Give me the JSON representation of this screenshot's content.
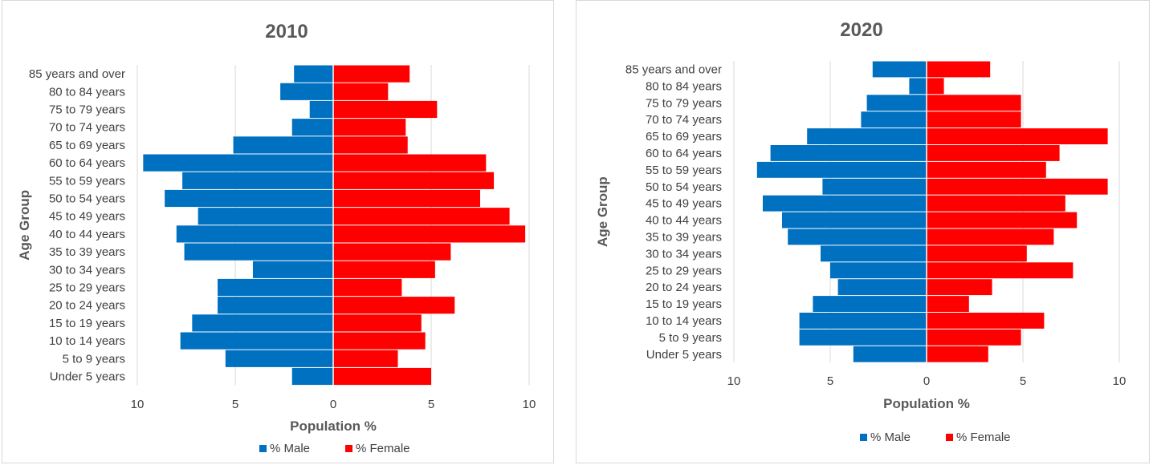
{
  "colors": {
    "male": "#0070C0",
    "female": "#FF0000"
  },
  "chart_data": [
    {
      "type": "bar",
      "title": "2010",
      "categories": [
        "85 years and over",
        "80 to 84 years",
        "75 to 79 years",
        "70 to 74 years",
        "65 to 69 years",
        "60 to 64 years",
        "55 to 59 years",
        "50 to 54 years",
        "45 to 49 years",
        "40 to 44 years",
        "35 to 39 years",
        "30 to 34 years",
        "25 to 29 years",
        "20 to 24 years",
        "15 to 19 years",
        "10 to 14 years",
        "5 to 9 years",
        "Under 5 years"
      ],
      "series": [
        {
          "name": "% Male",
          "values": [
            2.0,
            2.7,
            1.2,
            2.1,
            5.1,
            9.7,
            7.7,
            8.6,
            6.9,
            8.0,
            7.6,
            4.1,
            5.9,
            5.9,
            7.2,
            7.8,
            5.5,
            2.1
          ]
        },
        {
          "name": "% Female",
          "values": [
            3.9,
            2.8,
            5.3,
            3.7,
            3.8,
            7.8,
            8.2,
            7.5,
            9.0,
            9.8,
            6.0,
            5.2,
            3.5,
            6.2,
            4.5,
            4.7,
            3.3,
            5.0
          ]
        }
      ],
      "xlabel": "Population %",
      "ylabel": "Age Group",
      "xlim": [
        -10,
        10
      ],
      "xticks": [
        -10,
        -5,
        0,
        5,
        10
      ],
      "xtick_labels": [
        "10",
        "5",
        "0",
        "5",
        "10"
      ],
      "grid": true,
      "legend": "bottom"
    },
    {
      "type": "bar",
      "title": "2020",
      "categories": [
        "85 years and over",
        "80 to 84 years",
        "75 to 79 years",
        "70 to 74 years",
        "65 to 69 years",
        "60 to 64 years",
        "55 to 59 years",
        "50 to 54 years",
        "45 to 49 years",
        "40 to 44 years",
        "35 to 39 years",
        "30 to 34 years",
        "25 to 29 years",
        "20 to 24 years",
        "15 to 19 years",
        "10 to 14 years",
        "5 to 9 years",
        "Under 5 years"
      ],
      "series": [
        {
          "name": "% Male",
          "values": [
            2.8,
            0.9,
            3.1,
            3.4,
            6.2,
            8.1,
            8.8,
            5.4,
            8.5,
            7.5,
            7.2,
            5.5,
            5.0,
            4.6,
            5.9,
            6.6,
            6.6,
            3.8
          ]
        },
        {
          "name": "% Female",
          "values": [
            3.3,
            0.9,
            4.9,
            4.9,
            9.4,
            6.9,
            6.2,
            9.4,
            7.2,
            7.8,
            6.6,
            5.2,
            7.6,
            3.4,
            2.2,
            6.1,
            4.9,
            3.2
          ]
        }
      ],
      "xlabel": "Population %",
      "ylabel": "Age Group",
      "xlim": [
        -10,
        10
      ],
      "xticks": [
        -10,
        -5,
        0,
        5,
        10
      ],
      "xtick_labels": [
        "10",
        "5",
        "0",
        "5",
        "10"
      ],
      "grid": true,
      "legend": "bottom"
    }
  ]
}
